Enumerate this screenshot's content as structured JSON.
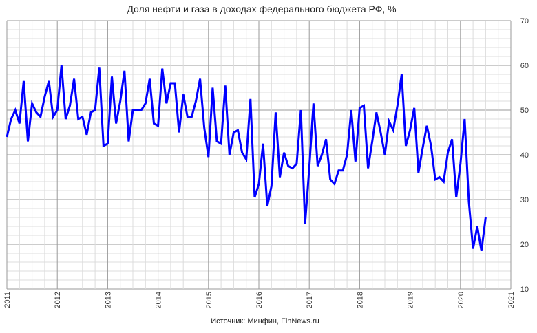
{
  "chart_data": {
    "type": "line",
    "title": "Доля нефти и газа в доходах федерального бюджета РФ, %",
    "source": "Источник: Минфин, FinNews.ru",
    "xlabel": "",
    "ylabel": "",
    "x_start": "2011-01",
    "frequency": "monthly",
    "x_ticks": [
      "2011",
      "2012",
      "2013",
      "2014",
      "2015",
      "2016",
      "2017",
      "2018",
      "2019",
      "2020",
      "2021"
    ],
    "y_ticks": [
      10,
      20,
      30,
      40,
      50,
      60,
      70
    ],
    "ylim": [
      10,
      70
    ],
    "grid": true,
    "line_color": "#0000ff",
    "series": [
      {
        "name": "Доля нефти и газа, %",
        "values": [
          44,
          48,
          50,
          47,
          56.5,
          43,
          51.5,
          49.5,
          48.5,
          53,
          56.5,
          48.5,
          50,
          60,
          48,
          51,
          57,
          48,
          48.5,
          44.5,
          49.5,
          50,
          59.5,
          42,
          42.5,
          57.5,
          47,
          52,
          58.8,
          43,
          50,
          50,
          50,
          51.5,
          57,
          47,
          46.5,
          59.3,
          51.5,
          56,
          56,
          45,
          53.5,
          48.5,
          48.5,
          52,
          57,
          46,
          39.5,
          55,
          43,
          42.5,
          55.5,
          40,
          45,
          45.5,
          40.5,
          39,
          52.5,
          30.5,
          33.5,
          42.5,
          28.5,
          33,
          49.5,
          35,
          40.5,
          37.5,
          37,
          38,
          50,
          24.5,
          37,
          51.5,
          37.5,
          40,
          43.5,
          34.5,
          33.5,
          36.5,
          36.5,
          40,
          50,
          38.5,
          50.5,
          51,
          37,
          43,
          49.5,
          45,
          40,
          47.5,
          45.5,
          51,
          58,
          42,
          45.5,
          50.5,
          36,
          41.5,
          46.5,
          42,
          34.5,
          35,
          34,
          40.5,
          43.5,
          30.5,
          38,
          48,
          29.5,
          19,
          24,
          18.5,
          26
        ]
      }
    ]
  }
}
